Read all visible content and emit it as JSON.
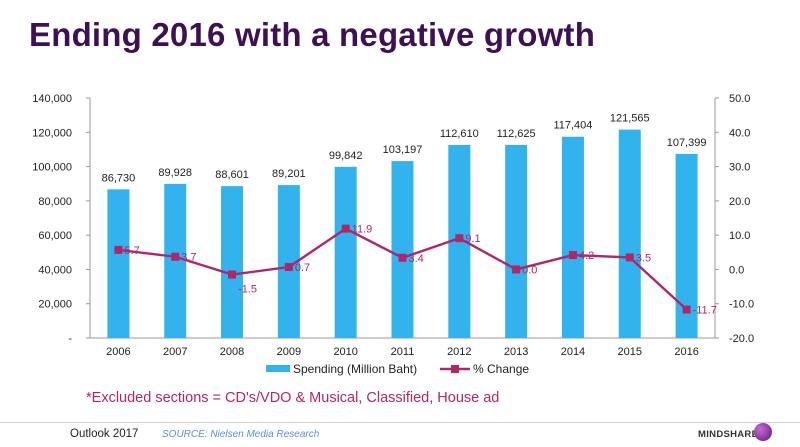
{
  "title": "Ending 2016 with a negative growth",
  "chart_data": {
    "type": "bar+line",
    "categories": [
      "2006",
      "2007",
      "2008",
      "2009",
      "2010",
      "2011",
      "2012",
      "2013",
      "2014",
      "2015",
      "2016"
    ],
    "series": [
      {
        "name": "Spending (Million Baht)",
        "type": "bar",
        "axis": "left",
        "color": "#33b3ed",
        "values": [
          86730,
          89928,
          88601,
          89201,
          99842,
          103197,
          112610,
          112625,
          117404,
          121565,
          107399
        ],
        "labels": [
          "86,730",
          "89,928",
          "88,601",
          "89,201",
          "99,842",
          "103,197",
          "112,610",
          "112,625",
          "117,404",
          "121,565",
          "107,399"
        ]
      },
      {
        "name": "% Change",
        "type": "line",
        "axis": "right",
        "color": "#b0266a",
        "values": [
          5.7,
          3.7,
          -1.5,
          0.7,
          11.9,
          3.4,
          9.1,
          0.0,
          4.2,
          3.5,
          -11.7
        ],
        "labels": [
          "5.7",
          "3.7",
          "-1.5",
          "0.7",
          "11.9",
          "3.4",
          "9.1",
          "0.0",
          "4.2",
          "3.5",
          "-11.7"
        ]
      }
    ],
    "y_left": {
      "range": [
        0,
        140000
      ],
      "ticks": [
        0,
        20000,
        40000,
        60000,
        80000,
        100000,
        120000,
        140000
      ],
      "tick_labels": [
        "-",
        "20,000",
        "40,000",
        "60,000",
        "80,000",
        "100,000",
        "120,000",
        "140,000"
      ]
    },
    "y_right": {
      "range": [
        -20,
        50
      ],
      "ticks": [
        -20,
        -10,
        0,
        10,
        20,
        30,
        40,
        50
      ],
      "tick_labels": [
        "-20.0",
        "-10.0",
        "0.0",
        "10.0",
        "20.0",
        "30.0",
        "40.0",
        "50.0"
      ]
    },
    "legend": {
      "position": "bottom",
      "entries": [
        "Spending (Million Baht)",
        "% Change"
      ]
    },
    "grid": false
  },
  "note": "*Excluded sections = CD's/VDO & Musical, Classified, House ad",
  "footer": {
    "outlook": "Outlook 2017",
    "source": "SOURCE: Nielsen Media Research",
    "brand": "MINDSHARE"
  }
}
